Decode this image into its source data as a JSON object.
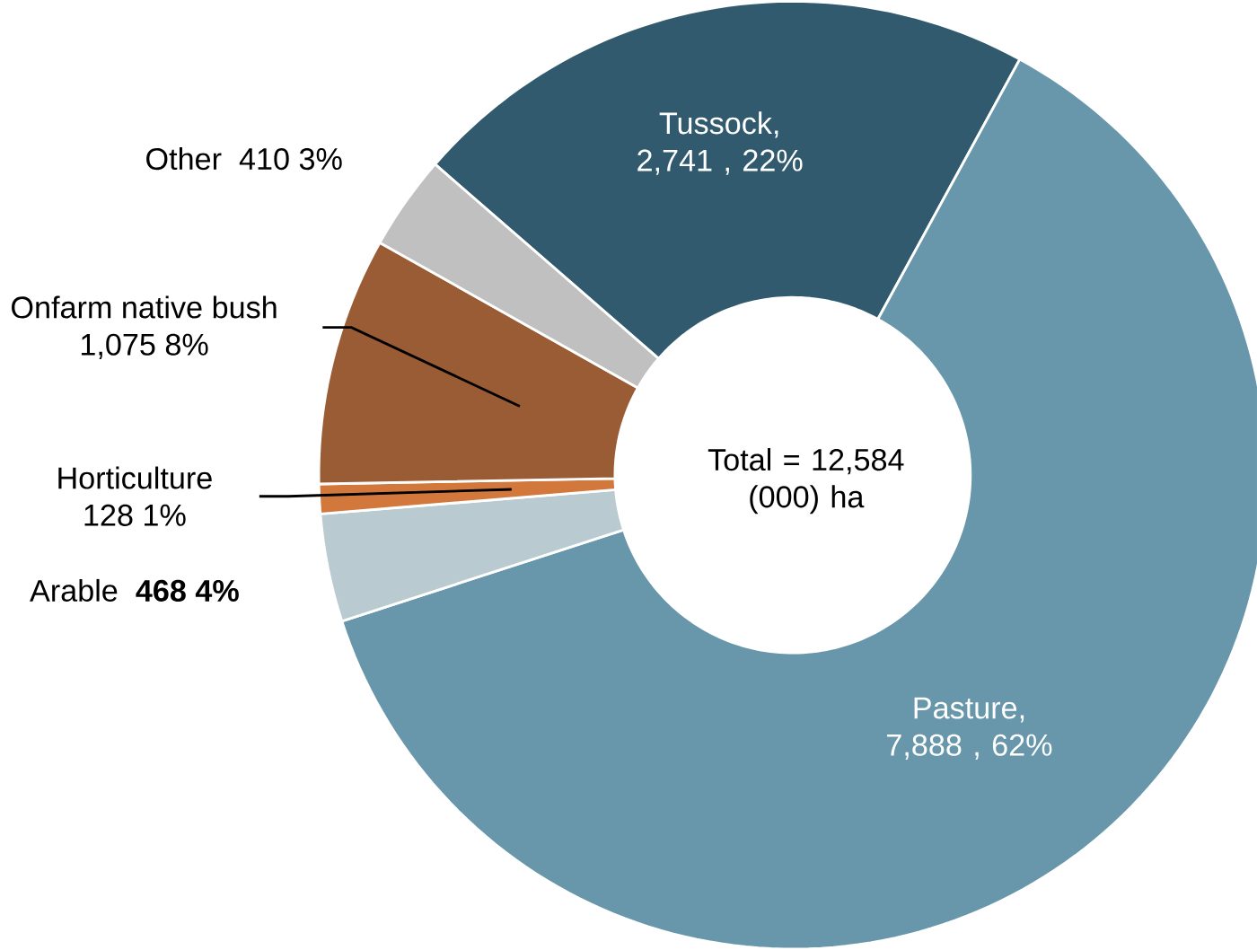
{
  "chart_data": {
    "type": "donut",
    "categories": [
      "Tussock",
      "Pasture",
      "Arable",
      "Horticulture",
      "Onfarm native bush",
      "Other"
    ],
    "values": [
      2741,
      7888,
      468,
      128,
      1075,
      410
    ],
    "colors": [
      "#325a6e",
      "#6897ab",
      "#b9cbd1",
      "#d2783c",
      "#9a5c34",
      "#c0c0c0"
    ],
    "value_labels": [
      ",  2,741 , 22%",
      ",  7,888 , 62%",
      "**468  4%**",
      "128  1%",
      "1,075  8%",
      "410  3%"
    ],
    "annotations": [
      "Total = 12,584 (000) ha"
    ]
  }
}
